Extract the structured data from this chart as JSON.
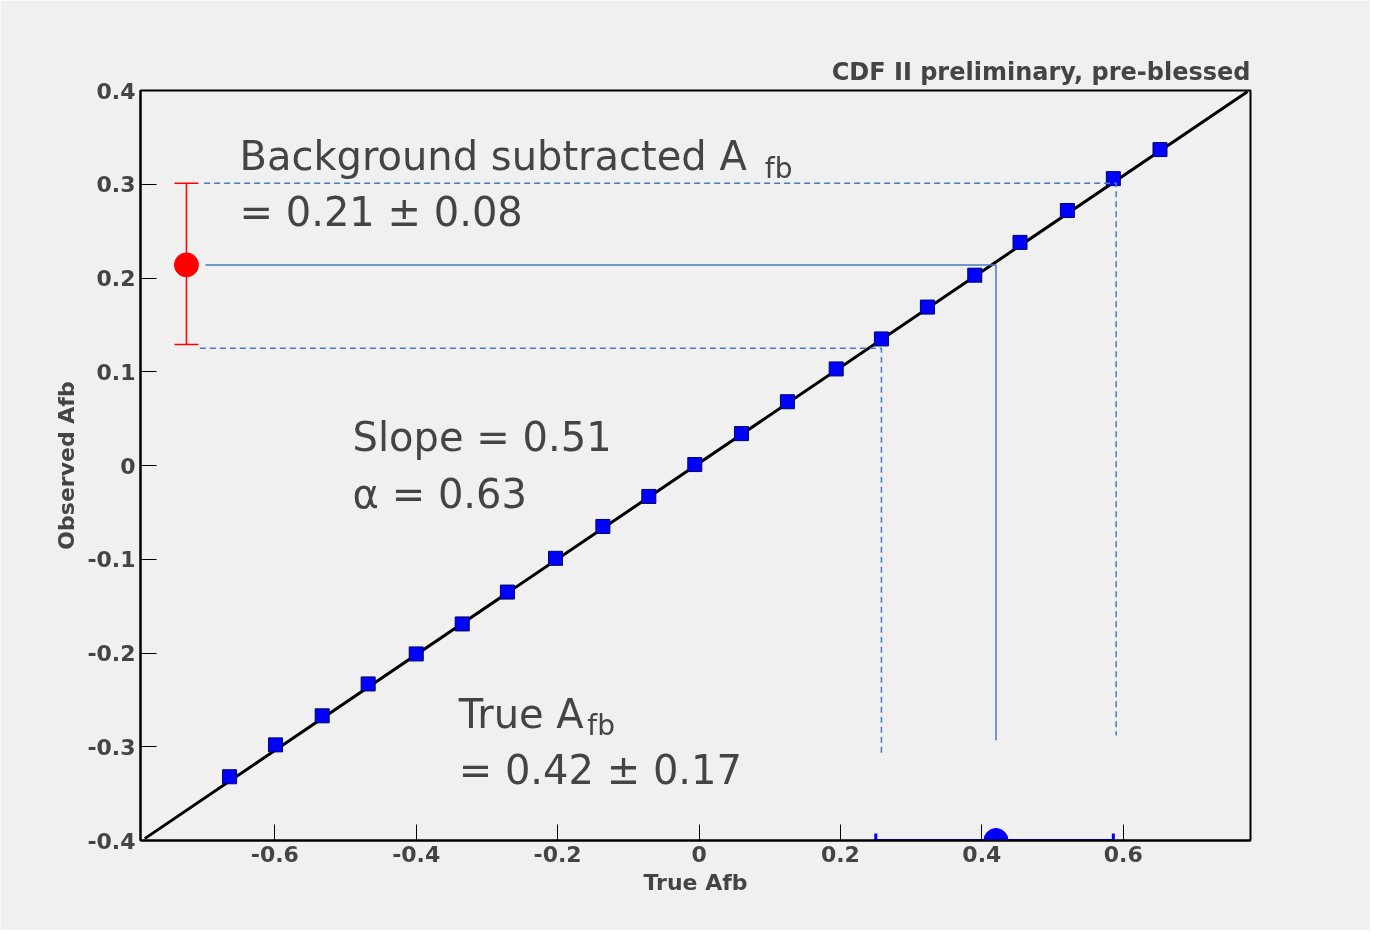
{
  "chart_data": {
    "type": "scatter",
    "title": "CDF II preliminary, pre-blessed",
    "xlabel": "True Afb",
    "ylabel": "Observed Afb",
    "xlim": [
      -0.79,
      0.78
    ],
    "ylim": [
      -0.4,
      0.4
    ],
    "xticks": [
      -0.6,
      -0.4,
      -0.2,
      0,
      0.2,
      0.4,
      0.6
    ],
    "yticks": [
      -0.4,
      -0.3,
      -0.2,
      -0.1,
      0,
      0.1,
      0.2,
      0.3,
      0.4
    ],
    "grid": false,
    "series": [
      {
        "type": "line",
        "color": "#000000",
        "line_style": "solid",
        "x": [
          -0.784,
          0.776
        ],
        "values": [
          -0.398,
          0.399
        ]
      },
      {
        "color": "#0000ff",
        "marker": "square",
        "x": [
          -0.664,
          -0.599,
          -0.533,
          -0.468,
          -0.4,
          -0.335,
          -0.271,
          -0.203,
          -0.136,
          -0.071,
          -0.006,
          0.06,
          0.125,
          0.194,
          0.258,
          0.323,
          0.39,
          0.454,
          0.521,
          0.586,
          0.652
        ],
        "values": [
          -0.332,
          -0.298,
          -0.267,
          -0.233,
          -0.201,
          -0.169,
          -0.135,
          -0.099,
          -0.065,
          -0.033,
          0.001,
          0.034,
          0.068,
          0.103,
          0.135,
          0.169,
          0.203,
          0.238,
          0.272,
          0.306,
          0.337
        ]
      },
      {
        "type": "line",
        "color": "#4a78c0",
        "line_style": "dashed",
        "x": [
          -0.7,
          0.59,
          0.59
        ],
        "values": [
          0.301,
          0.301,
          -0.288
        ]
      },
      {
        "type": "line",
        "color": "#4a78c0",
        "line_style": "dashed",
        "x": [
          -0.706,
          0.258,
          0.258
        ],
        "values": [
          0.125,
          0.125,
          -0.307
        ]
      },
      {
        "type": "line",
        "color": "#4a78c0",
        "line_style": "solid",
        "x": [
          -0.698,
          0.42,
          0.42
        ],
        "values": [
          0.214,
          0.214,
          -0.293
        ]
      },
      {
        "color": "#ff0000",
        "marker": "circle",
        "x": [
          -0.725
        ],
        "values": [
          0.214
        ],
        "errors": [
          [
            0.129,
            0.301
          ]
        ]
      },
      {
        "color": "#0000ff",
        "marker": "circle",
        "x": [
          0.42
        ],
        "values": [
          -0.4
        ],
        "xerrors": [
          [
            0.25,
            0.586
          ]
        ]
      }
    ],
    "annotations": [
      "Background subtracted  A$_{fb}$",
      "= 0.21 ± 0.08",
      "Slope = 0.51",
      "α  = 0.63",
      "True A$_{fb}$",
      "= 0.42 ± 0.17"
    ]
  }
}
